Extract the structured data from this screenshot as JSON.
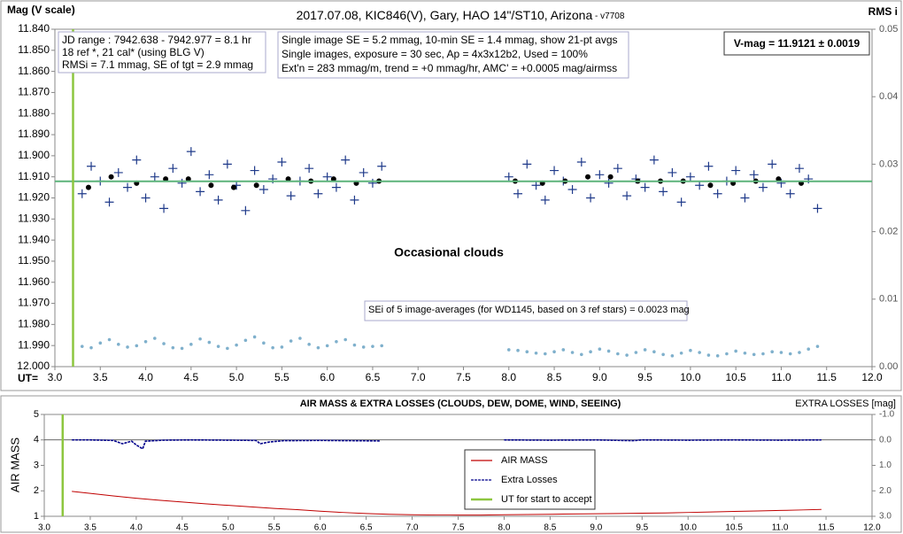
{
  "chart_data": [
    {
      "type": "scatter",
      "title": "2017.07.08,  KIC846(V),  Gary,  HAO 14\"/ST10, Arizona",
      "subtitle": " - v7708",
      "y_label": "Mag (V scale)",
      "y2_label": "RMS i",
      "x_label": "UT=",
      "xlim": [
        3,
        12
      ],
      "xticks": [
        {
          "value": 3,
          "label": "3.0"
        },
        3.5,
        {
          "value": 4,
          "label": "4.0"
        },
        4.5,
        {
          "value": 5,
          "label": "5.0"
        },
        5.5,
        {
          "value": 6,
          "label": "6.0"
        },
        6.5,
        {
          "value": 7,
          "label": "7.0"
        },
        7.5,
        {
          "value": 8,
          "label": "8.0"
        },
        8.5,
        {
          "value": 9,
          "label": "9.0"
        },
        9.5,
        {
          "value": 10,
          "label": "10.0"
        },
        10.5,
        {
          "value": 11,
          "label": "11.0"
        },
        11.5,
        {
          "value": 12,
          "label": "12.0"
        }
      ],
      "ylim": [
        12.0,
        11.84
      ],
      "yticks": [
        {
          "value": 11.84,
          "label": "11.840"
        },
        {
          "value": 11.85,
          "label": "11.850"
        },
        {
          "value": 11.86,
          "label": "11.860"
        },
        {
          "value": 11.87,
          "label": "11.870"
        },
        {
          "value": 11.88,
          "label": "11.880"
        },
        {
          "value": 11.89,
          "label": "11.890"
        },
        {
          "value": 11.9,
          "label": "11.900"
        },
        {
          "value": 11.91,
          "label": "11.910"
        },
        {
          "value": 11.92,
          "label": "11.920"
        },
        {
          "value": 11.93,
          "label": "11.930"
        },
        {
          "value": 11.94,
          "label": "11.940"
        },
        {
          "value": 11.95,
          "label": "11.950"
        },
        {
          "value": 11.96,
          "label": "11.960"
        },
        {
          "value": 11.97,
          "label": "11.970"
        },
        {
          "value": 11.98,
          "label": "11.980"
        },
        {
          "value": 11.99,
          "label": "11.990"
        },
        {
          "value": 12.0,
          "label": "12.000"
        }
      ],
      "y2lim": [
        0,
        0.05
      ],
      "y2ticks": [
        {
          "value": 0,
          "label": "0.00"
        },
        0.01,
        0.02,
        0.03,
        0.04,
        0.05
      ],
      "series": [
        {
          "color": "#1f3a8a",
          "marker": "cross",
          "x": [
            3.3,
            3.4,
            3.5,
            3.6,
            3.7,
            3.8,
            3.9,
            4.0,
            4.1,
            4.2,
            4.3,
            4.4,
            4.5,
            4.6,
            4.7,
            4.8,
            4.9,
            5.0,
            5.1,
            5.2,
            5.3,
            5.4,
            5.5,
            5.6,
            5.7,
            5.8,
            5.9,
            6.0,
            6.1,
            6.2,
            6.3,
            6.4,
            6.5,
            6.6,
            8.0,
            8.1,
            8.2,
            8.3,
            8.4,
            8.5,
            8.6,
            8.7,
            8.8,
            8.9,
            9.0,
            9.1,
            9.2,
            9.3,
            9.4,
            9.5,
            9.6,
            9.7,
            9.8,
            9.9,
            10.0,
            10.1,
            10.2,
            10.3,
            10.4,
            10.5,
            10.6,
            10.7,
            10.8,
            10.9,
            11.0,
            11.1,
            11.2,
            11.3,
            11.4
          ],
          "values": [
            11.918,
            11.905,
            11.912,
            11.922,
            11.908,
            11.915,
            11.902,
            11.92,
            11.91,
            11.925,
            11.906,
            11.913,
            11.898,
            11.917,
            11.909,
            11.921,
            11.904,
            11.914,
            11.926,
            11.907,
            11.916,
            11.911,
            11.903,
            11.919,
            11.912,
            11.906,
            11.918,
            11.91,
            11.915,
            11.902,
            11.921,
            11.908,
            11.913,
            11.905,
            11.91,
            11.918,
            11.904,
            11.914,
            11.921,
            11.907,
            11.912,
            11.916,
            11.903,
            11.92,
            11.909,
            11.913,
            11.906,
            11.919,
            11.911,
            11.915,
            11.902,
            11.917,
            11.908,
            11.922,
            11.91,
            11.914,
            11.905,
            11.918,
            11.912,
            11.907,
            11.92,
            11.909,
            11.915,
            11.904,
            11.913,
            11.918,
            11.906,
            11.911,
            11.925
          ]
        },
        {
          "color": "#000000",
          "marker": "dot",
          "x": [
            3.37,
            3.62,
            3.9,
            4.22,
            4.47,
            4.72,
            4.97,
            5.22,
            5.57,
            5.82,
            6.07,
            6.32,
            6.57,
            8.07,
            8.37,
            8.62,
            8.87,
            9.12,
            9.42,
            9.67,
            9.92,
            10.22,
            10.47,
            10.72,
            10.97,
            11.22
          ],
          "values": [
            11.915,
            11.91,
            11.913,
            11.911,
            11.911,
            11.914,
            11.915,
            11.914,
            11.911,
            11.912,
            11.911,
            11.913,
            11.912,
            11.912,
            11.913,
            11.912,
            11.91,
            11.91,
            11.912,
            11.912,
            11.912,
            11.914,
            11.913,
            11.912,
            11.911,
            11.913
          ]
        },
        {
          "color": "#7fb0cc",
          "marker": "small",
          "axis": "y2",
          "x": [
            3.3,
            3.4,
            3.5,
            3.6,
            3.7,
            3.8,
            3.9,
            4.0,
            4.1,
            4.2,
            4.3,
            4.4,
            4.5,
            4.6,
            4.7,
            4.8,
            4.9,
            5.0,
            5.1,
            5.2,
            5.3,
            5.4,
            5.5,
            5.6,
            5.7,
            5.8,
            5.9,
            6.0,
            6.1,
            6.2,
            6.3,
            6.4,
            6.5,
            6.6,
            8.0,
            8.1,
            8.2,
            8.3,
            8.4,
            8.5,
            8.6,
            8.7,
            8.8,
            8.9,
            9.0,
            9.1,
            9.2,
            9.3,
            9.4,
            9.5,
            9.6,
            9.7,
            9.8,
            9.9,
            10.0,
            10.1,
            10.2,
            10.3,
            10.4,
            10.5,
            10.6,
            10.7,
            10.8,
            10.9,
            11.0,
            11.1,
            11.2,
            11.3,
            11.4
          ],
          "values": [
            0.003,
            0.0028,
            0.0035,
            0.004,
            0.0033,
            0.0029,
            0.0031,
            0.0037,
            0.0042,
            0.0034,
            0.0028,
            0.0027,
            0.0033,
            0.0041,
            0.0036,
            0.003,
            0.0027,
            0.0032,
            0.0039,
            0.0044,
            0.0035,
            0.0028,
            0.0029,
            0.0038,
            0.0042,
            0.0033,
            0.0028,
            0.0031,
            0.0037,
            0.004,
            0.0032,
            0.0029,
            0.003,
            0.0031,
            0.0025,
            0.0024,
            0.0022,
            0.002,
            0.0019,
            0.0022,
            0.0025,
            0.0021,
            0.0018,
            0.0022,
            0.0026,
            0.0023,
            0.0019,
            0.0017,
            0.0021,
            0.0025,
            0.0022,
            0.0018,
            0.0016,
            0.002,
            0.0024,
            0.0021,
            0.0017,
            0.0016,
            0.0019,
            0.0023,
            0.002,
            0.0018,
            0.0019,
            0.0022,
            0.0021,
            0.0019,
            0.0021,
            0.0026,
            0.003
          ]
        }
      ],
      "reference_value": 11.9121,
      "reference_color": "#5cb37a",
      "start_ut": 3.2,
      "start_color": "#8dc63f",
      "annotations": [
        {
          "lines": [
            "JD range : 7942.638 - 7942.977 = 8.1 hr",
            "18 ref *, 21 cal* (using BLG V)",
            "RMSi = 7.1 mmag, SE of tgt = 2.9 mmag"
          ]
        },
        {
          "lines": [
            "Single image SE = 5.2 mmag, 10-min SE = 1.4 mmag, show 21-pt avgs",
            "Single images, exposure = 30 sec, Ap = 4x3x12b2, Used = 100%",
            "Ext'n = 283 mmag/m, trend = +0 mmag/hr, AMC' = +0.0005 mag/airmss"
          ]
        },
        {
          "lines": [
            "V-mag = 11.9121 ± 0.0019"
          ]
        },
        {
          "lines": [
            "Occasional clouds"
          ]
        },
        {
          "lines": [
            "SEi of 5 image-averages (for WD1145, based on 3 ref stars) = 0.0023 mag"
          ]
        }
      ]
    },
    {
      "type": "line",
      "title": "AIR MASS & EXTRA LOSSES (CLOUDS, DEW, DOME, WIND, SEEING)",
      "y_label": "AIR MASS",
      "y2_label": "EXTRA LOSSES [mag]",
      "xlim": [
        3,
        12
      ],
      "xticks": [
        {
          "value": 3,
          "label": "3.0"
        },
        3.5,
        {
          "value": 4,
          "label": "4.0"
        },
        4.5,
        {
          "value": 5,
          "label": "5.0"
        },
        5.5,
        {
          "value": 6,
          "label": "6.0"
        },
        6.5,
        {
          "value": 7,
          "label": "7.0"
        },
        7.5,
        {
          "value": 8,
          "label": "8.0"
        },
        8.5,
        {
          "value": 9,
          "label": "9.0"
        },
        9.5,
        {
          "value": 10,
          "label": "10.0"
        },
        10.5,
        {
          "value": 11,
          "label": "11.0"
        },
        11.5,
        {
          "value": 12,
          "label": "12.0"
        }
      ],
      "ylim": [
        1,
        5
      ],
      "yticks": [
        1,
        2,
        3,
        4,
        5
      ],
      "y2lim": [
        3.0,
        -1.0
      ],
      "y2ticks": [
        {
          "value": -1,
          "label": "-1.0"
        },
        {
          "value": 0,
          "label": "0.0"
        },
        {
          "value": 1,
          "label": "1.0"
        },
        {
          "value": 2,
          "label": "2.0"
        },
        {
          "value": 3,
          "label": "3.0"
        }
      ],
      "series": [
        {
          "name": "AIR MASS",
          "color": "#c00000",
          "x": [
            3.3,
            3.5,
            3.75,
            4.0,
            4.25,
            4.5,
            4.75,
            5.0,
            5.25,
            5.5,
            5.75,
            6.0,
            6.25,
            6.5,
            6.75,
            7.0,
            7.25,
            7.5,
            7.75,
            8.0,
            8.25,
            8.5,
            8.75,
            9.0,
            9.25,
            9.5,
            9.75,
            10.0,
            10.25,
            10.5,
            10.75,
            11.0,
            11.25,
            11.45
          ],
          "values": [
            1.98,
            1.9,
            1.8,
            1.71,
            1.63,
            1.56,
            1.49,
            1.43,
            1.37,
            1.31,
            1.26,
            1.2,
            1.15,
            1.11,
            1.08,
            1.06,
            1.05,
            1.05,
            1.05,
            1.06,
            1.07,
            1.08,
            1.09,
            1.1,
            1.11,
            1.12,
            1.13,
            1.15,
            1.17,
            1.19,
            1.21,
            1.23,
            1.25,
            1.27
          ]
        },
        {
          "name": "Extra Losses",
          "color": "#00008b",
          "dash": true,
          "axis": "y2",
          "x": [
            3.3,
            3.5,
            3.75,
            3.85,
            3.95,
            4.0,
            4.07,
            4.1,
            4.3,
            4.6,
            5.0,
            5.3,
            5.35,
            5.45,
            5.6,
            6.0,
            6.65,
            7.3,
            8.0,
            8.5,
            9.0,
            9.4,
            9.5,
            10.0,
            10.5,
            11.0,
            11.45
          ],
          "values": [
            0,
            0,
            0.02,
            0.15,
            0.05,
            0.2,
            0.35,
            0.05,
            0.01,
            0,
            0.01,
            0.02,
            0.15,
            0.08,
            0.03,
            0.02,
            0.04,
            null,
            0,
            0.01,
            0,
            0.03,
            0,
            0.01,
            0,
            0.01,
            0
          ]
        }
      ],
      "start_ut": 3.2,
      "start_color": "#8dc63f",
      "start_label": "UT for start to accept"
    }
  ]
}
